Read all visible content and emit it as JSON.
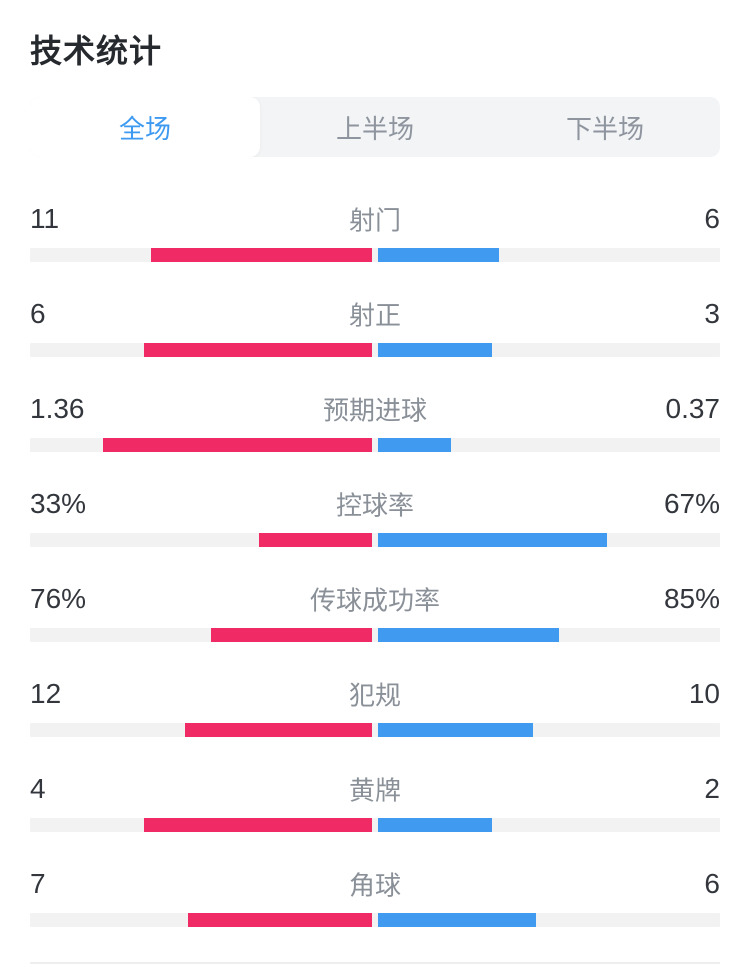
{
  "header": {
    "title": "技术统计"
  },
  "tabs": [
    {
      "label": "全场",
      "active": true
    },
    {
      "label": "上半场",
      "active": false
    },
    {
      "label": "下半场",
      "active": false
    }
  ],
  "colors": {
    "home_bar": "#EF2A65",
    "away_bar": "#3F9AF0",
    "bar_track": "#F2F2F2",
    "active_tab_text": "#3D9AF0",
    "inactive_tab_text": "#8F959E",
    "tab_bar_bg": "#F2F4F6"
  },
  "stats": [
    {
      "label": "射门",
      "home_display": "11",
      "home_value": 11,
      "away_display": "6",
      "away_value": 6
    },
    {
      "label": "射正",
      "home_display": "6",
      "home_value": 6,
      "away_display": "3",
      "away_value": 3
    },
    {
      "label": "预期进球",
      "home_display": "1.36",
      "home_value": 1.36,
      "away_display": "0.37",
      "away_value": 0.37
    },
    {
      "label": "控球率",
      "home_display": "33%",
      "home_value": 33,
      "away_display": "67%",
      "away_value": 67
    },
    {
      "label": "传球成功率",
      "home_display": "76%",
      "home_value": 76,
      "away_display": "85%",
      "away_value": 85
    },
    {
      "label": "犯规",
      "home_display": "12",
      "home_value": 12,
      "away_display": "10",
      "away_value": 10
    },
    {
      "label": "黄牌",
      "home_display": "4",
      "home_value": 4,
      "away_display": "2",
      "away_value": 2
    },
    {
      "label": "角球",
      "home_display": "7",
      "home_value": 7,
      "away_display": "6",
      "away_value": 6
    }
  ],
  "chart_data": {
    "type": "bar",
    "orientation": "horizontal-paired",
    "title": "技术统计",
    "categories": [
      "射门",
      "射正",
      "预期进球",
      "控球率",
      "传球成功率",
      "犯规",
      "黄牌",
      "角球"
    ],
    "series": [
      {
        "name": "left-team",
        "color": "#EF2A65",
        "values": [
          11,
          6,
          1.36,
          33,
          76,
          12,
          4,
          7
        ]
      },
      {
        "name": "right-team",
        "color": "#3F9AF0",
        "values": [
          6,
          3,
          0.37,
          67,
          85,
          10,
          2,
          6
        ]
      }
    ],
    "layout": "each bar length is the value's share of the row total, drawn outward from center"
  }
}
